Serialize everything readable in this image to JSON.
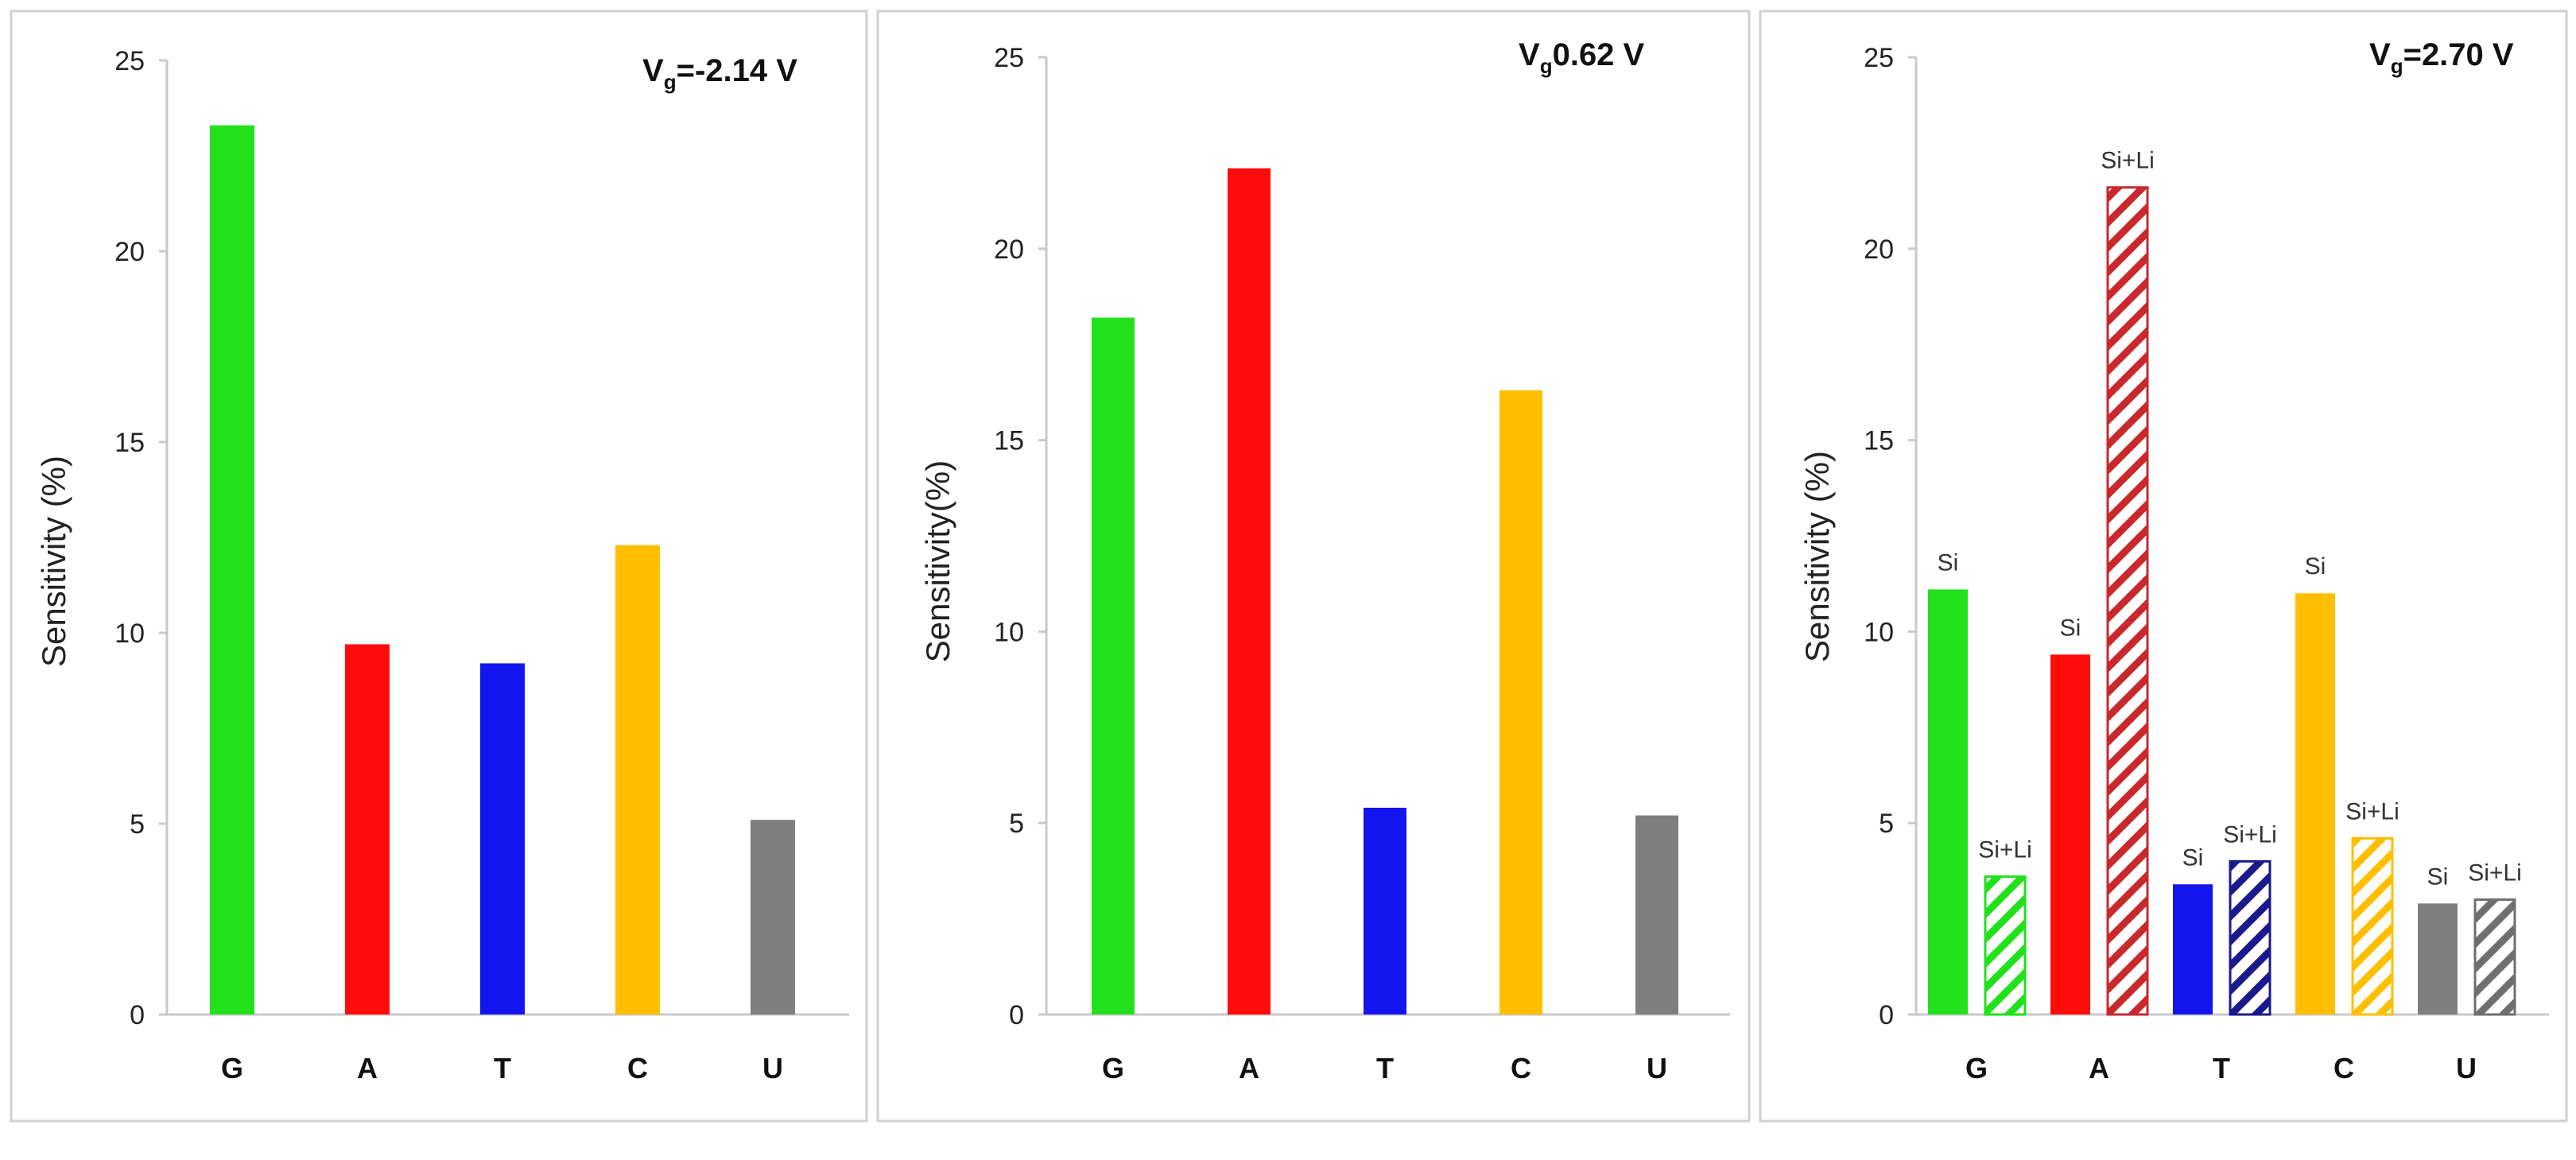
{
  "chart_data": [
    {
      "type": "bar",
      "title_main": "V",
      "title_sub": "g",
      "title_value": "=-2.14 V",
      "ylabel": "Sensitivity (%)",
      "xlabel": "",
      "ylim": [
        0,
        25
      ],
      "yticks": [
        "0",
        "5",
        "10",
        "15",
        "20",
        "25"
      ],
      "categories": [
        "G",
        "A",
        "T",
        "C",
        "U"
      ],
      "series": [
        {
          "name": "",
          "values": [
            23.3,
            9.7,
            9.2,
            12.3,
            5.1
          ]
        }
      ]
    },
    {
      "type": "bar",
      "title_main": "V",
      "title_sub": "g",
      "title_value": "0.62 V",
      "ylabel": "Sensitivity(%)",
      "xlabel": "",
      "ylim": [
        0,
        25
      ],
      "yticks": [
        "0",
        "5",
        "10",
        "15",
        "20",
        "25"
      ],
      "categories": [
        "G",
        "A",
        "T",
        "C",
        "U"
      ],
      "series": [
        {
          "name": "",
          "values": [
            18.2,
            22.1,
            5.4,
            16.3,
            5.2
          ]
        }
      ]
    },
    {
      "type": "bar",
      "title_main": "V",
      "title_sub": "g",
      "title_value": "=2.70 V",
      "ylabel": "Sensitivity (%)",
      "xlabel": "",
      "ylim": [
        0,
        25
      ],
      "yticks": [
        "0",
        "5",
        "10",
        "15",
        "20",
        "25"
      ],
      "categories": [
        "G",
        "A",
        "T",
        "C",
        "U"
      ],
      "series": [
        {
          "name": "Si",
          "label": "Si",
          "values": [
            11.1,
            9.4,
            3.4,
            11.0,
            2.9
          ]
        },
        {
          "name": "Si+Li",
          "label": "Si+Li",
          "values": [
            3.6,
            21.6,
            4.0,
            4.6,
            3.0
          ]
        }
      ]
    }
  ],
  "colors": {
    "G": "#22e01c",
    "A": "#ff0b0b",
    "T": "#1414ee",
    "C": "#ffbf00",
    "U": "#7f7f7f",
    "A_hatch": "#c9282d",
    "T_hatch": "#1a1a8c",
    "G_hatch": "#22e01c",
    "C_hatch": "#ffbf00",
    "U_hatch": "#6f6f6f"
  }
}
